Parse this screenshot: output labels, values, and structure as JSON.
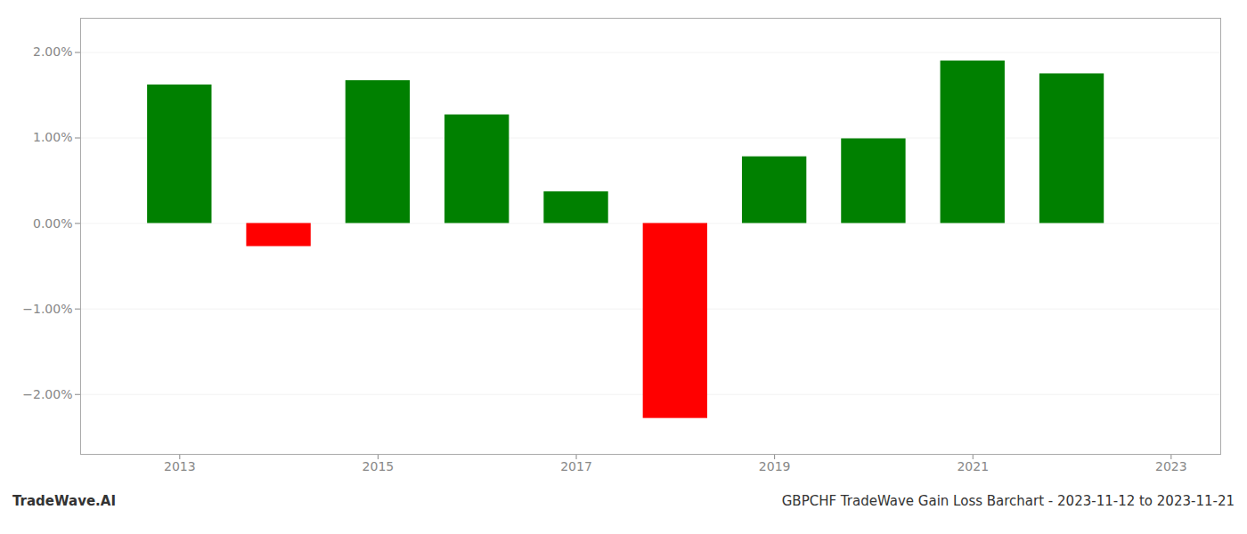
{
  "chart_data": {
    "type": "bar",
    "x": [
      2013,
      2014,
      2015,
      2016,
      2017,
      2018,
      2019,
      2020,
      2021,
      2022
    ],
    "values": [
      1.62,
      -0.27,
      1.67,
      1.27,
      0.37,
      -2.28,
      0.78,
      0.99,
      1.9,
      1.75
    ],
    "colors": [
      "#008000",
      "#ff0000",
      "#008000",
      "#008000",
      "#008000",
      "#ff0000",
      "#008000",
      "#008000",
      "#008000",
      "#008000"
    ],
    "xlim": [
      2012.0,
      2023.5
    ],
    "xticks": [
      2013,
      2015,
      2017,
      2019,
      2021,
      2023
    ],
    "ylim": [
      -2.7,
      2.4
    ],
    "yticks": [
      {
        "value": -2.0,
        "label": "−2.00%"
      },
      {
        "value": -1.0,
        "label": "−1.00%"
      },
      {
        "value": 0.0,
        "label": "0.00%"
      },
      {
        "value": 1.0,
        "label": "1.00%"
      },
      {
        "value": 2.0,
        "label": "2.00%"
      }
    ],
    "grid": true,
    "annotations": [
      "TradeWave.AI",
      "GBPCHF TradeWave Gain Loss Barchart - 2023-11-12 to 2023-11-21"
    ]
  }
}
